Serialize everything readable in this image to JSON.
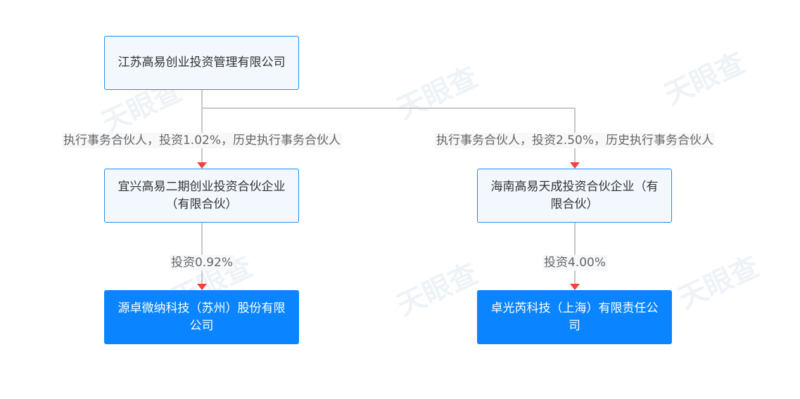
{
  "watermark": "天眼查",
  "nodes": {
    "root": "江苏高易创业投资管理有限公司",
    "mid_left": "宜兴高易二期创业投资合伙企业（有限合伙）",
    "mid_right": "海南高易天成投资合伙企业（有限合伙）",
    "leaf_left": "源卓微纳科技（苏州）股份有限公司",
    "leaf_right": "卓光芮科技（上海）有限责任公司"
  },
  "edges": {
    "root_to_mid_left": "执行事务合伙人，投资1.02%，历史执行事务合伙人",
    "root_to_mid_right": "执行事务合伙人，投资2.50%，历史执行事务合伙人",
    "mid_left_to_leaf_left": "投资0.92%",
    "mid_right_to_leaf_right": "投资4.00%"
  },
  "colors": {
    "node_border": "#1e8cf5",
    "node_fill": "#f2f8fe",
    "target_fill": "#0a84ff",
    "arrow": "#f4433a",
    "line": "#c8c8c8"
  }
}
